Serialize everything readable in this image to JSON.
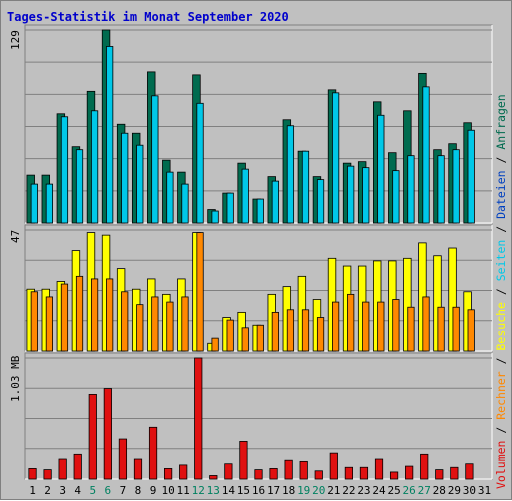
{
  "title": "Tages-Statistik im Monat September 2020",
  "colors": {
    "background": "#c0c0c0",
    "title": "#0000cc",
    "requests": "#006b4f",
    "files": "#00c8e8",
    "pages": "#ffff00",
    "visits": "#ff8800",
    "volume": "#e01010",
    "weekend_label": "#008060",
    "day_label": "#000000",
    "grid": "#808080"
  },
  "legend": {
    "volumen": "Volumen",
    "sep1": " / ",
    "rechner": "Rechner",
    "sep2": " / ",
    "besuche": "Besuche",
    "sep3": " / ",
    "seiten": "Seiten",
    "sep4": " / ",
    "dateien": "Dateien",
    "sep5": " / ",
    "anfragen": "Anfragen"
  },
  "chart_data": {
    "type": "bar",
    "categories": [
      "1",
      "2",
      "3",
      "4",
      "5",
      "6",
      "7",
      "8",
      "9",
      "10",
      "11",
      "12",
      "13",
      "14",
      "15",
      "16",
      "17",
      "18",
      "19",
      "20",
      "21",
      "22",
      "23",
      "24",
      "25",
      "26",
      "27",
      "28",
      "29",
      "30",
      "31"
    ],
    "weekend_days": [
      5,
      6,
      12,
      13,
      19,
      20,
      26,
      27
    ],
    "panels": [
      {
        "name": "anfragen-dateien",
        "ymax_label": "129",
        "ymax": 129,
        "series": [
          {
            "name": "Anfragen",
            "color": "#006b4f",
            "values": [
              32,
              32,
              73,
              51,
              88,
              129,
              66,
              60,
              101,
              42,
              34,
              99,
              9,
              20,
              40,
              16,
              31,
              69,
              48,
              31,
              89,
              40,
              41,
              81,
              47,
              75,
              100,
              49,
              53,
              67,
              null
            ]
          },
          {
            "name": "Dateien",
            "color": "#00c8e8",
            "values": [
              26,
              26,
              71,
              49,
              75,
              118,
              60,
              52,
              85,
              34,
              26,
              80,
              8,
              20,
              36,
              16,
              28,
              65,
              48,
              29,
              87,
              38,
              37,
              72,
              35,
              45,
              91,
              45,
              49,
              62,
              null
            ]
          }
        ]
      },
      {
        "name": "seiten-besuche",
        "ymax_label": "47",
        "ymax": 47,
        "series": [
          {
            "name": "Seiten",
            "color": "#ffff00",
            "values": [
              24,
              24,
              27,
              39,
              46,
              45,
              32,
              24,
              28,
              22,
              28,
              46,
              3,
              13,
              15,
              10,
              22,
              25,
              29,
              20,
              36,
              33,
              33,
              35,
              35,
              36,
              42,
              37,
              40,
              23,
              null
            ]
          },
          {
            "name": "Besuche",
            "color": "#ff8800",
            "values": [
              23,
              21,
              26,
              29,
              28,
              28,
              23,
              18,
              21,
              19,
              21,
              46,
              5,
              12,
              9,
              10,
              15,
              16,
              16,
              13,
              19,
              22,
              19,
              19,
              20,
              17,
              21,
              17,
              17,
              16,
              null
            ]
          }
        ]
      },
      {
        "name": "volumen",
        "ymax_label": "1.03 MB",
        "ymax": 1.03,
        "series": [
          {
            "name": "Volumen",
            "color": "#e01010",
            "values": [
              0.09,
              0.08,
              0.17,
              0.21,
              0.72,
              0.77,
              0.34,
              0.17,
              0.44,
              0.09,
              0.12,
              1.03,
              0.03,
              0.13,
              0.32,
              0.08,
              0.09,
              0.16,
              0.15,
              0.07,
              0.22,
              0.1,
              0.1,
              0.17,
              0.06,
              0.11,
              0.21,
              0.08,
              0.1,
              0.13,
              null
            ]
          }
        ]
      }
    ]
  }
}
